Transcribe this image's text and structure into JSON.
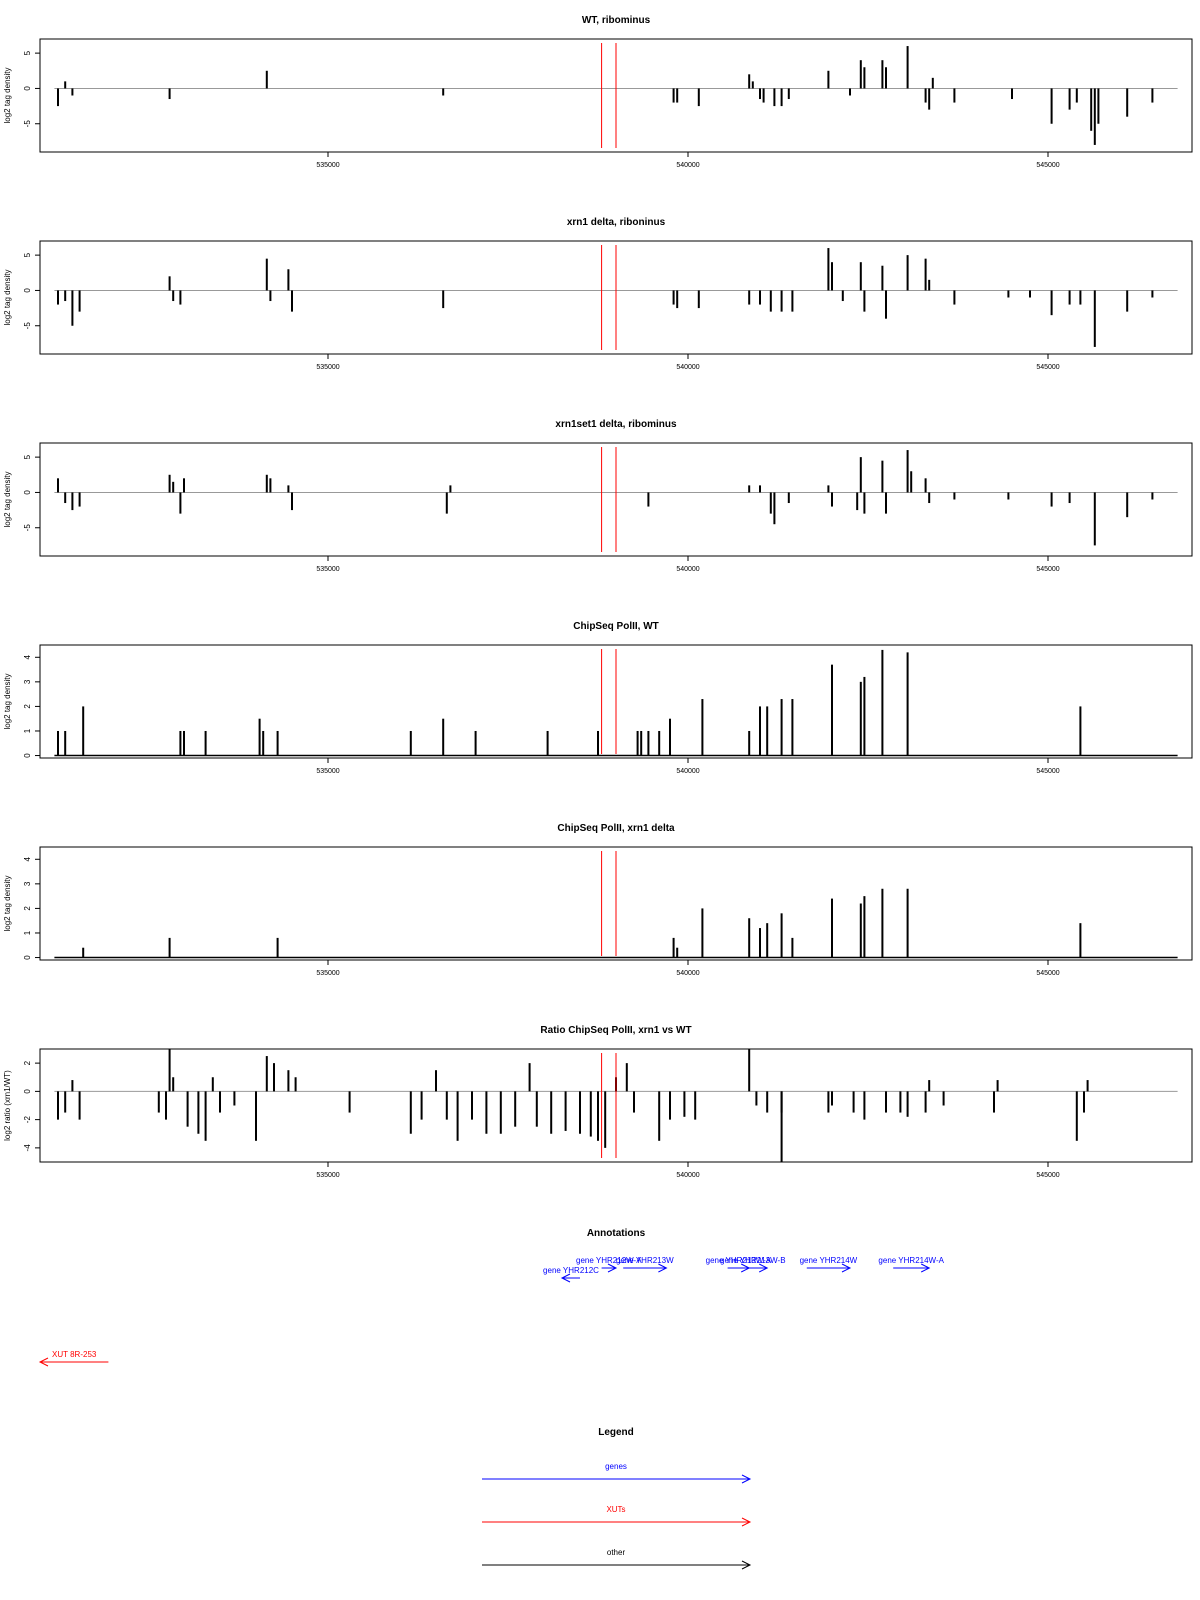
{
  "accent": {
    "genes": "#0000ff",
    "xuts": "#ff0000",
    "other": "#000000",
    "marker": "#ff0000"
  },
  "x_ticks": [
    "535000",
    "540000",
    "545000"
  ],
  "x_tick_values": [
    535000,
    540000,
    545000
  ],
  "x_range": [
    531000,
    547000
  ],
  "marker_positions": [
    538800,
    539000
  ],
  "chart_data": [
    {
      "type": "bar",
      "title": "WT, ribominus",
      "ylabel": "log2 tag density",
      "ylim": [
        -9,
        7
      ],
      "yticks": [
        5,
        0,
        -5
      ],
      "ytick_labels": [
        "5",
        "0",
        "-5"
      ],
      "baseline": 0,
      "series": [
        {
          "values": [
            [
              531250,
              -2.5
            ],
            [
              531350,
              1
            ],
            [
              531450,
              -1
            ],
            [
              532800,
              -1.5
            ],
            [
              534150,
              2.5
            ],
            [
              536600,
              -1
            ],
            [
              539800,
              -2
            ],
            [
              539850,
              -2
            ],
            [
              540150,
              -2.5
            ],
            [
              540850,
              2
            ],
            [
              540900,
              1
            ],
            [
              541000,
              -1.5
            ],
            [
              541050,
              -2
            ],
            [
              541200,
              -2.5
            ],
            [
              541300,
              -2.5
            ],
            [
              541400,
              -1.5
            ],
            [
              541950,
              2.5
            ],
            [
              542250,
              -1
            ],
            [
              542400,
              4
            ],
            [
              542450,
              3
            ],
            [
              542700,
              4
            ],
            [
              542750,
              3
            ],
            [
              543050,
              6
            ],
            [
              543300,
              -2
            ],
            [
              543350,
              -3
            ],
            [
              543400,
              1.5
            ],
            [
              543700,
              -2
            ],
            [
              544500,
              -1.5
            ],
            [
              545050,
              -5
            ],
            [
              545300,
              -3
            ],
            [
              545400,
              -2
            ],
            [
              545600,
              -6
            ],
            [
              545650,
              -8
            ],
            [
              545700,
              -5
            ],
            [
              546100,
              -4
            ],
            [
              546450,
              -2
            ]
          ]
        }
      ]
    },
    {
      "type": "bar",
      "title": "xrn1 delta, riboninus",
      "ylabel": "log2 tag density",
      "ylim": [
        -9,
        7
      ],
      "yticks": [
        5,
        0,
        -5
      ],
      "ytick_labels": [
        "5",
        "0",
        "-5"
      ],
      "baseline": 0,
      "series": [
        {
          "values": [
            [
              531250,
              -2
            ],
            [
              531350,
              -1.5
            ],
            [
              531450,
              -5
            ],
            [
              531550,
              -3
            ],
            [
              532800,
              2
            ],
            [
              532850,
              -1.5
            ],
            [
              532950,
              -2
            ],
            [
              534150,
              4.5
            ],
            [
              534200,
              -1.5
            ],
            [
              534450,
              3
            ],
            [
              534500,
              -3
            ],
            [
              536600,
              -2.5
            ],
            [
              539800,
              -2
            ],
            [
              539850,
              -2.5
            ],
            [
              540150,
              -2.5
            ],
            [
              540850,
              -2
            ],
            [
              541000,
              -2
            ],
            [
              541150,
              -3
            ],
            [
              541300,
              -3
            ],
            [
              541450,
              -3
            ],
            [
              541950,
              6
            ],
            [
              542000,
              4
            ],
            [
              542150,
              -1.5
            ],
            [
              542400,
              4
            ],
            [
              542450,
              -3
            ],
            [
              542700,
              3.5
            ],
            [
              542750,
              -4
            ],
            [
              543050,
              5
            ],
            [
              543300,
              4.5
            ],
            [
              543350,
              1.5
            ],
            [
              543700,
              -2
            ],
            [
              544450,
              -1
            ],
            [
              544750,
              -1
            ],
            [
              545050,
              -3.5
            ],
            [
              545300,
              -2
            ],
            [
              545450,
              -2
            ],
            [
              545650,
              -8
            ],
            [
              546100,
              -3
            ],
            [
              546450,
              -1
            ]
          ]
        }
      ]
    },
    {
      "type": "bar",
      "title": "xrn1set1 delta, ribominus",
      "ylabel": "log2 tag density",
      "ylim": [
        -9,
        7
      ],
      "yticks": [
        5,
        0,
        -5
      ],
      "ytick_labels": [
        "5",
        "0",
        "-5"
      ],
      "baseline": 0,
      "series": [
        {
          "values": [
            [
              531250,
              2
            ],
            [
              531350,
              -1.5
            ],
            [
              531450,
              -2.5
            ],
            [
              531550,
              -2
            ],
            [
              532800,
              2.5
            ],
            [
              532850,
              1.5
            ],
            [
              532950,
              -3
            ],
            [
              533000,
              2
            ],
            [
              534150,
              2.5
            ],
            [
              534200,
              2
            ],
            [
              534450,
              1
            ],
            [
              534500,
              -2.5
            ],
            [
              536650,
              -3
            ],
            [
              536700,
              1
            ],
            [
              539450,
              -2
            ],
            [
              540850,
              1
            ],
            [
              541000,
              1
            ],
            [
              541150,
              -3
            ],
            [
              541200,
              -4.5
            ],
            [
              541400,
              -1.5
            ],
            [
              541950,
              1
            ],
            [
              542000,
              -2
            ],
            [
              542350,
              -2.5
            ],
            [
              542400,
              5
            ],
            [
              542450,
              -3
            ],
            [
              542700,
              4.5
            ],
            [
              542750,
              -3
            ],
            [
              543050,
              6
            ],
            [
              543100,
              3
            ],
            [
              543300,
              2
            ],
            [
              543350,
              -1.5
            ],
            [
              543700,
              -1
            ],
            [
              544450,
              -1
            ],
            [
              545050,
              -2
            ],
            [
              545300,
              -1.5
            ],
            [
              545650,
              -7.5
            ],
            [
              546100,
              -3.5
            ],
            [
              546450,
              -1
            ]
          ]
        }
      ]
    },
    {
      "type": "bar",
      "title": "ChipSeq PolII, WT",
      "ylabel": "log2 tag density",
      "ylim": [
        -0.1,
        4.5
      ],
      "yticks": [
        0,
        1,
        2,
        3,
        4
      ],
      "ytick_labels": [
        "0",
        "1",
        "2",
        "3",
        "4"
      ],
      "baseline": 0,
      "series": [
        {
          "values": [
            [
              531250,
              1
            ],
            [
              531350,
              1
            ],
            [
              531600,
              2
            ],
            [
              532950,
              1
            ],
            [
              533000,
              1
            ],
            [
              533300,
              1
            ],
            [
              534050,
              1.5
            ],
            [
              534100,
              1
            ],
            [
              534300,
              1
            ],
            [
              536150,
              1
            ],
            [
              536600,
              1.5
            ],
            [
              537050,
              1
            ],
            [
              538050,
              1
            ],
            [
              538750,
              1
            ],
            [
              539300,
              1
            ],
            [
              539350,
              1
            ],
            [
              539450,
              1
            ],
            [
              539600,
              1
            ],
            [
              539750,
              1.5
            ],
            [
              540200,
              2.3
            ],
            [
              540850,
              1
            ],
            [
              541000,
              2
            ],
            [
              541100,
              2
            ],
            [
              541300,
              2.3
            ],
            [
              541450,
              2.3
            ],
            [
              542000,
              3.7
            ],
            [
              542400,
              3
            ],
            [
              542450,
              3.2
            ],
            [
              542700,
              4.3
            ],
            [
              543050,
              4.2
            ],
            [
              545450,
              2
            ]
          ]
        }
      ]
    },
    {
      "type": "bar",
      "title": "ChipSeq PolII, xrn1 delta",
      "ylabel": "log2 tag density",
      "ylim": [
        -0.1,
        4.5
      ],
      "yticks": [
        0,
        1,
        2,
        3,
        4
      ],
      "ytick_labels": [
        "0",
        "1",
        "2",
        "3",
        "4"
      ],
      "baseline": 0,
      "series": [
        {
          "values": [
            [
              531600,
              0.4
            ],
            [
              532800,
              0.8
            ],
            [
              534300,
              0.8
            ],
            [
              539800,
              0.8
            ],
            [
              539850,
              0.4
            ],
            [
              540200,
              2
            ],
            [
              540850,
              1.6
            ],
            [
              541000,
              1.2
            ],
            [
              541100,
              1.4
            ],
            [
              541300,
              1.8
            ],
            [
              541450,
              0.8
            ],
            [
              542000,
              2.4
            ],
            [
              542400,
              2.2
            ],
            [
              542450,
              2.5
            ],
            [
              542700,
              2.8
            ],
            [
              543050,
              2.8
            ],
            [
              545450,
              1.4
            ]
          ]
        }
      ]
    },
    {
      "type": "bar",
      "title": "Ratio ChipSeq PolII, xrn1 vs WT",
      "ylabel": "log2 ratio (xrn1/WT)",
      "ylim": [
        -5,
        3
      ],
      "yticks": [
        2,
        0,
        -2,
        -4
      ],
      "ytick_labels": [
        "2",
        "0",
        "-2",
        "-4"
      ],
      "baseline": 0,
      "series": [
        {
          "values": [
            [
              531250,
              -2
            ],
            [
              531350,
              -1.5
            ],
            [
              531450,
              0.8
            ],
            [
              531550,
              -2
            ],
            [
              532650,
              -1.5
            ],
            [
              532750,
              -2
            ],
            [
              532800,
              3
            ],
            [
              532850,
              1
            ],
            [
              533050,
              -2.5
            ],
            [
              533200,
              -3
            ],
            [
              533300,
              -3.5
            ],
            [
              533400,
              1
            ],
            [
              533500,
              -1.5
            ],
            [
              533700,
              -1
            ],
            [
              534000,
              -3.5
            ],
            [
              534150,
              2.5
            ],
            [
              534250,
              2
            ],
            [
              534450,
              1.5
            ],
            [
              534550,
              1
            ],
            [
              535300,
              -1.5
            ],
            [
              536150,
              -3
            ],
            [
              536300,
              -2
            ],
            [
              536500,
              1.5
            ],
            [
              536650,
              -2
            ],
            [
              536800,
              -3.5
            ],
            [
              537000,
              -2
            ],
            [
              537200,
              -3
            ],
            [
              537400,
              -3
            ],
            [
              537600,
              -2.5
            ],
            [
              537800,
              2
            ],
            [
              537900,
              -2.5
            ],
            [
              538100,
              -3
            ],
            [
              538300,
              -2.8
            ],
            [
              538500,
              -3
            ],
            [
              538650,
              -3.2
            ],
            [
              538750,
              -3.5
            ],
            [
              538850,
              -4
            ],
            [
              539000,
              1
            ],
            [
              539150,
              2
            ],
            [
              539250,
              -1.5
            ],
            [
              539600,
              -3.5
            ],
            [
              539750,
              -2
            ],
            [
              539950,
              -1.8
            ],
            [
              540100,
              -2
            ],
            [
              540850,
              3
            ],
            [
              540950,
              -1
            ],
            [
              541100,
              -1.5
            ],
            [
              541300,
              -1.5
            ],
            [
              541300,
              -5
            ],
            [
              541950,
              -1.5
            ],
            [
              542000,
              -1
            ],
            [
              542300,
              -1.5
            ],
            [
              542450,
              -2
            ],
            [
              542750,
              -1.5
            ],
            [
              542950,
              -1.5
            ],
            [
              543050,
              -1.8
            ],
            [
              543300,
              -1.5
            ],
            [
              543350,
              0.8
            ],
            [
              543550,
              -1
            ],
            [
              544250,
              -1.5
            ],
            [
              544300,
              0.8
            ],
            [
              545400,
              -3.5
            ],
            [
              545500,
              -1.5
            ],
            [
              545550,
              0.8
            ]
          ]
        }
      ]
    }
  ],
  "annotations": {
    "title": "Annotations",
    "items": [
      {
        "label": "gene YHR212C",
        "color": "#0000ff",
        "start": 538500,
        "end": 538250,
        "row": 2
      },
      {
        "label": "gene YHR212W-A",
        "color": "#0000ff",
        "start": 538800,
        "end": 539000,
        "row": 1
      },
      {
        "label": "gene YHR213W",
        "color": "#0000ff",
        "start": 539100,
        "end": 539700,
        "row": 1
      },
      {
        "label": "gene YHR213W-A",
        "color": "#0000ff",
        "start": 540550,
        "end": 540850,
        "row": 1
      },
      {
        "label": "gene YHR213W-B",
        "color": "#0000ff",
        "start": 540700,
        "end": 541100,
        "row": 1
      },
      {
        "label": "gene YHR214W",
        "color": "#0000ff",
        "start": 541650,
        "end": 542250,
        "row": 1
      },
      {
        "label": "gene YHR214W-A",
        "color": "#0000ff",
        "start": 542850,
        "end": 543350,
        "row": 1
      },
      {
        "label": "XUT 8R-253",
        "color": "#ff0000",
        "start": 531950,
        "end": 531000,
        "row": 3
      }
    ]
  },
  "legend": {
    "title": "Legend",
    "items": [
      {
        "label": "genes",
        "color": "#0000ff"
      },
      {
        "label": "XUTs",
        "color": "#ff0000"
      },
      {
        "label": "other",
        "color": "#000000"
      }
    ]
  }
}
